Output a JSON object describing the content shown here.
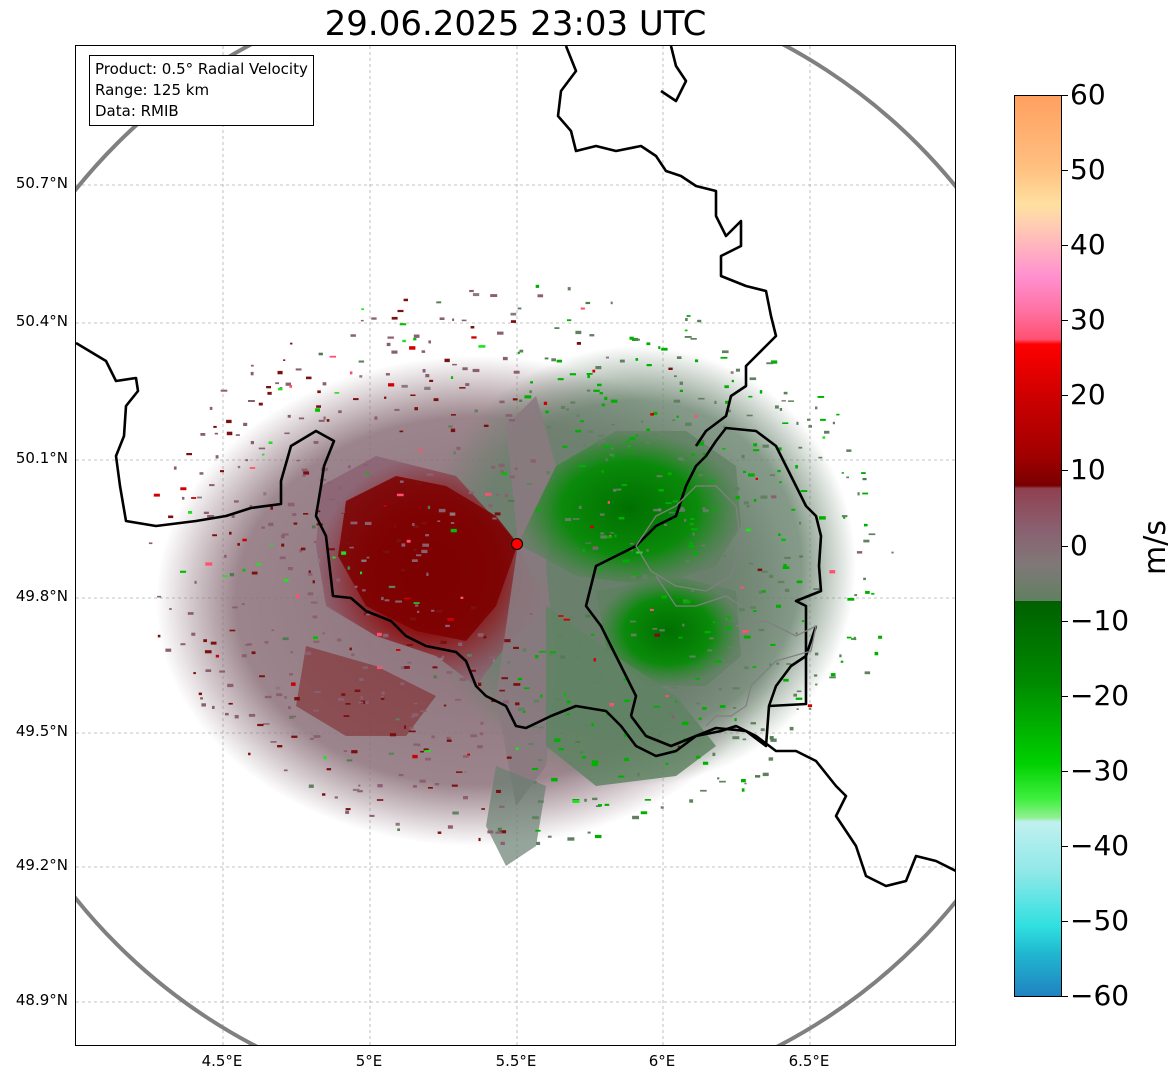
{
  "title": "29.06.2025 23:03 UTC",
  "info": {
    "product": "Product: 0.5° Radial Velocity",
    "range": "Range: 125 km",
    "source": "Data: RMIB"
  },
  "lat_ticks": [
    "50.7°N",
    "50.4°N",
    "50.1°N",
    "49.8°N",
    "49.5°N",
    "49.2°N",
    "48.9°N"
  ],
  "lon_ticks": [
    "4.5°E",
    "5°E",
    "5.5°E",
    "6°E",
    "6.5°E"
  ],
  "colorbar": {
    "unit": "m/s",
    "ticks": [
      "60",
      "50",
      "40",
      "30",
      "20",
      "10",
      "0",
      "−10",
      "−20",
      "−30",
      "−40",
      "−50",
      "−60"
    ],
    "range": [
      -60,
      60
    ]
  },
  "radar_site": {
    "lon": 5.5,
    "lat": 49.91,
    "color": "#ff0000"
  },
  "colors": {
    "range_ring": "#808080",
    "border": "#000000",
    "inbound": "#007a00",
    "outbound": "#800000",
    "near_zero": "#8a7a80"
  }
}
